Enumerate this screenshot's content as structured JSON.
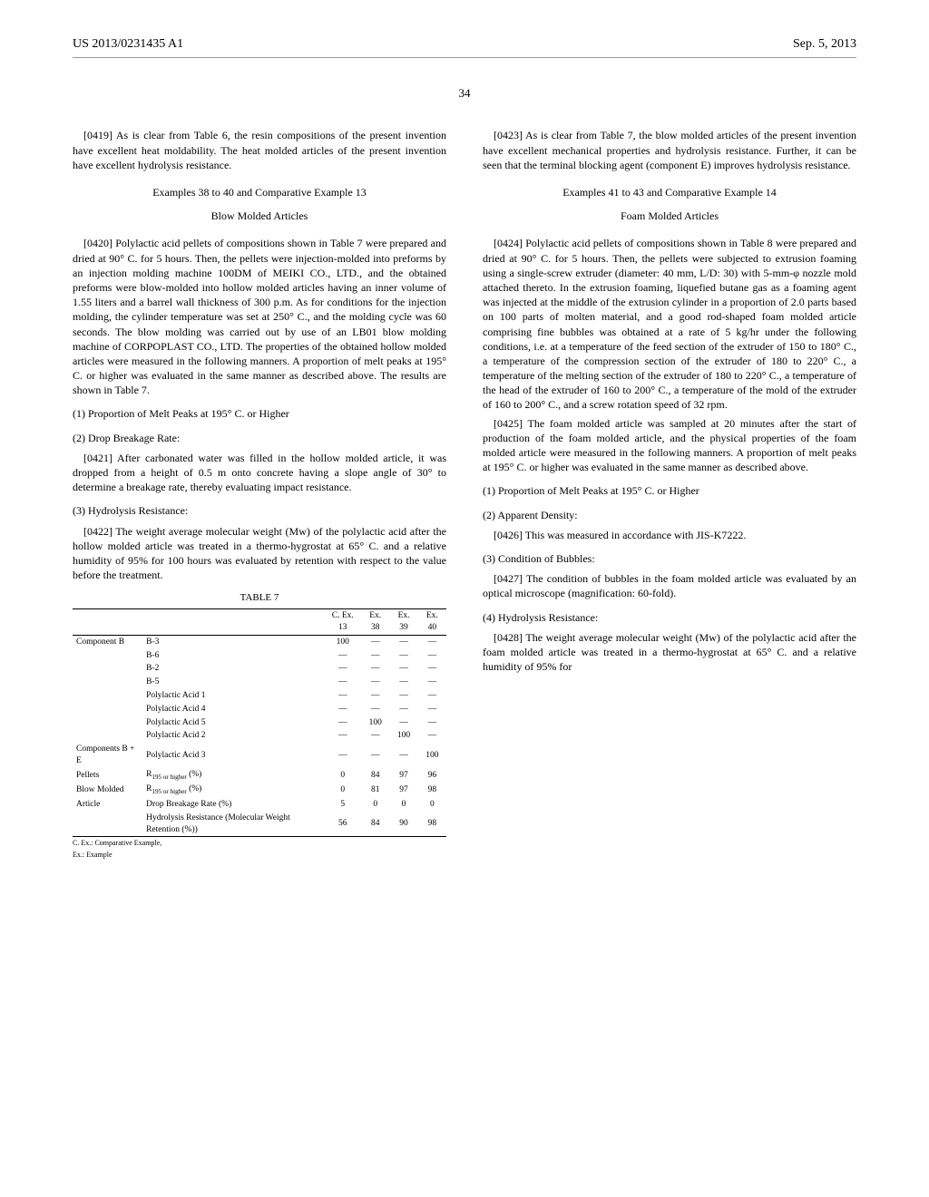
{
  "header": {
    "publication": "US 2013/0231435 A1",
    "date": "Sep. 5, 2013",
    "page_number": "34"
  },
  "left_col": {
    "p0419": "[0419]   As is clear from Table 6, the resin compositions of the present invention have excellent heat moldability. The heat molded articles of the present invention have excellent hydrolysis resistance.",
    "sec1_head": "Examples 38 to 40 and Comparative Example 13",
    "sec1_sub": "Blow Molded Articles",
    "p0420": "[0420]   Polylactic acid pellets of compositions shown in Table 7 were prepared and dried at 90° C. for 5 hours. Then, the pellets were injection-molded into preforms by an injection molding machine 100DM of MEIKI CO., LTD., and the obtained preforms were blow-molded into hollow molded articles having an inner volume of 1.55 liters and a barrel wall thickness of 300 p.m. As for conditions for the injection molding, the cylinder temperature was set at 250° C., and the molding cycle was 60 seconds. The blow molding was carried out by use of an LB01 blow molding machine of CORPOPLAST CO., LTD. The properties of the obtained hollow molded articles were measured in the following manners. A proportion of melt peaks at 195° C. or higher was evaluated in the same manner as described above. The results are shown in Table 7.",
    "m1": "(1) Proportion of Melt Peaks at 195° C. or Higher",
    "m2": "(2) Drop Breakage Rate:",
    "p0421": "[0421]   After carbonated water was filled in the hollow molded article, it was dropped from a height of 0.5 m onto concrete having a slope angle of 30° to determine a breakage rate, thereby evaluating impact resistance.",
    "m3": "(3) Hydrolysis Resistance:",
    "p0422": "[0422]   The weight average molecular weight (Mw) of the polylactic acid after the hollow molded article was treated in a thermo-hygrostat at 65° C. and a relative humidity of 95% for 100 hours was evaluated by retention with respect to the value before the treatment.",
    "p0423": "[0423]   As is clear from Table 7, the blow molded articles of the present invention have excellent mechanical properties and hydrolysis resistance. Further, it can be seen that the terminal blocking agent (component E) improves hydrolysis resistance."
  },
  "right_col": {
    "sec2_head": "Examples 41 to 43 and Comparative Example 14",
    "sec2_sub": "Foam Molded Articles",
    "p0424": "[0424]   Polylactic acid pellets of compositions shown in Table 8 were prepared and dried at 90° C. for 5 hours. Then, the pellets were subjected to extrusion foaming using a single-screw extruder (diameter: 40 mm, L/D: 30) with 5-mm-φ nozzle mold attached thereto. In the extrusion foaming, liquefied butane gas as a foaming agent was injected at the middle of the extrusion cylinder in a proportion of 2.0 parts based on 100 parts of molten material, and a good rod-shaped foam molded article comprising fine bubbles was obtained at a rate of 5 kg/hr under the following conditions, i.e. at a temperature of the feed section of the extruder of 150 to 180° C., a temperature of the compression section of the extruder of 180 to 220° C., a temperature of the melting section of the extruder of 180 to 220° C., a temperature of the head of the extruder of 160 to 200° C., a temperature of the mold of the extruder of 160 to 200° C., and a screw rotation speed of 32 rpm.",
    "p0425": "[0425]   The foam molded article was sampled at 20 minutes after the start of production of the foam molded article, and the physical properties of the foam molded article were measured in the following manners. A proportion of melt peaks at 195° C. or higher was evaluated in the same manner as described above.",
    "m1": "(1) Proportion of Melt Peaks at 195° C. or Higher",
    "m2": "(2) Apparent Density:",
    "p0426": "[0426]   This was measured in accordance with JIS-K7222.",
    "m3": "(3) Condition of Bubbles:",
    "p0427": "[0427]   The condition of bubbles in the foam molded article was evaluated by an optical microscope (magnification: 60-fold).",
    "m4": "(4) Hydrolysis Resistance:",
    "p0428": "[0428]   The weight average molecular weight (Mw) of the polylactic acid after the foam molded article was treated in a thermo-hygrostat at 65° C. and a relative humidity of 95% for"
  },
  "table7": {
    "title": "TABLE 7",
    "columns": [
      "",
      "",
      "C. Ex. 13",
      "Ex. 38",
      "Ex. 39",
      "Ex. 40"
    ],
    "rows": [
      [
        "Component B",
        "B-3",
        "100",
        "—",
        "—",
        "—"
      ],
      [
        "",
        "B-6",
        "—",
        "—",
        "—",
        "—"
      ],
      [
        "",
        "B-2",
        "—",
        "—",
        "—",
        "—"
      ],
      [
        "",
        "B-5",
        "—",
        "—",
        "—",
        "—"
      ],
      [
        "",
        "Polylactic Acid 1",
        "—",
        "—",
        "—",
        "—"
      ],
      [
        "",
        "Polylactic Acid 4",
        "—",
        "—",
        "—",
        "—"
      ],
      [
        "",
        "Polylactic Acid 5",
        "—",
        "100",
        "—",
        "—"
      ],
      [
        "",
        "Polylactic Acid 2",
        "—",
        "—",
        "100",
        "—"
      ],
      [
        "Components B + E",
        "Polylactic Acid 3",
        "—",
        "—",
        "—",
        "100"
      ],
      [
        "Pellets",
        "R195_sub (%)",
        "0",
        "84",
        "97",
        "96"
      ],
      [
        "Blow Molded",
        "R195_sub (%)",
        "0",
        "81",
        "97",
        "98"
      ],
      [
        "Article",
        "Drop Breakage Rate (%)",
        "5",
        "0",
        "0",
        "0"
      ],
      [
        "",
        "Hydrolysis Resistance (Molecular Weight Retention (%))",
        "56",
        "84",
        "90",
        "98"
      ]
    ],
    "footnotes": [
      "C. Ex.: Comparative Example,",
      "Ex.: Example"
    ],
    "sub_label": "195 or higher"
  }
}
